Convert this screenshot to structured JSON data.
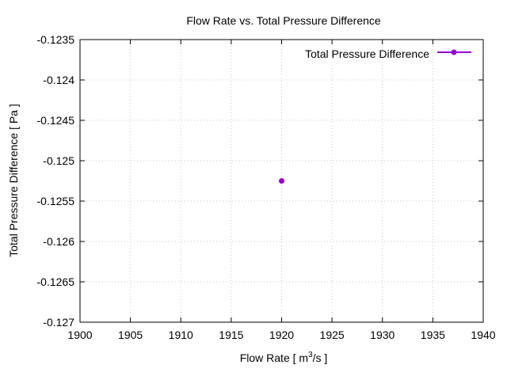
{
  "chart_data": {
    "type": "scatter",
    "title": "Flow Rate vs. Total Pressure Difference",
    "xlabel_main": "Flow Rate [ m",
    "xlabel_sup": "3",
    "xlabel_tail": "/s ]",
    "ylabel": "Total Pressure Difference [ Pa ]",
    "xlim": [
      1900,
      1940
    ],
    "ylim": [
      -0.127,
      -0.1235
    ],
    "xticks": [
      "1900",
      "1905",
      "1910",
      "1915",
      "1920",
      "1925",
      "1930",
      "1935",
      "1940"
    ],
    "yticks": [
      "-0.127",
      "-0.1265",
      "-0.126",
      "-0.1255",
      "-0.125",
      "-0.1245",
      "-0.124",
      "-0.1235"
    ],
    "grid": true,
    "legend_position": "top-right",
    "series": [
      {
        "name": "Total Pressure Difference",
        "color": "#9400d3",
        "x": [
          1920
        ],
        "y": [
          -0.12525
        ]
      }
    ]
  }
}
